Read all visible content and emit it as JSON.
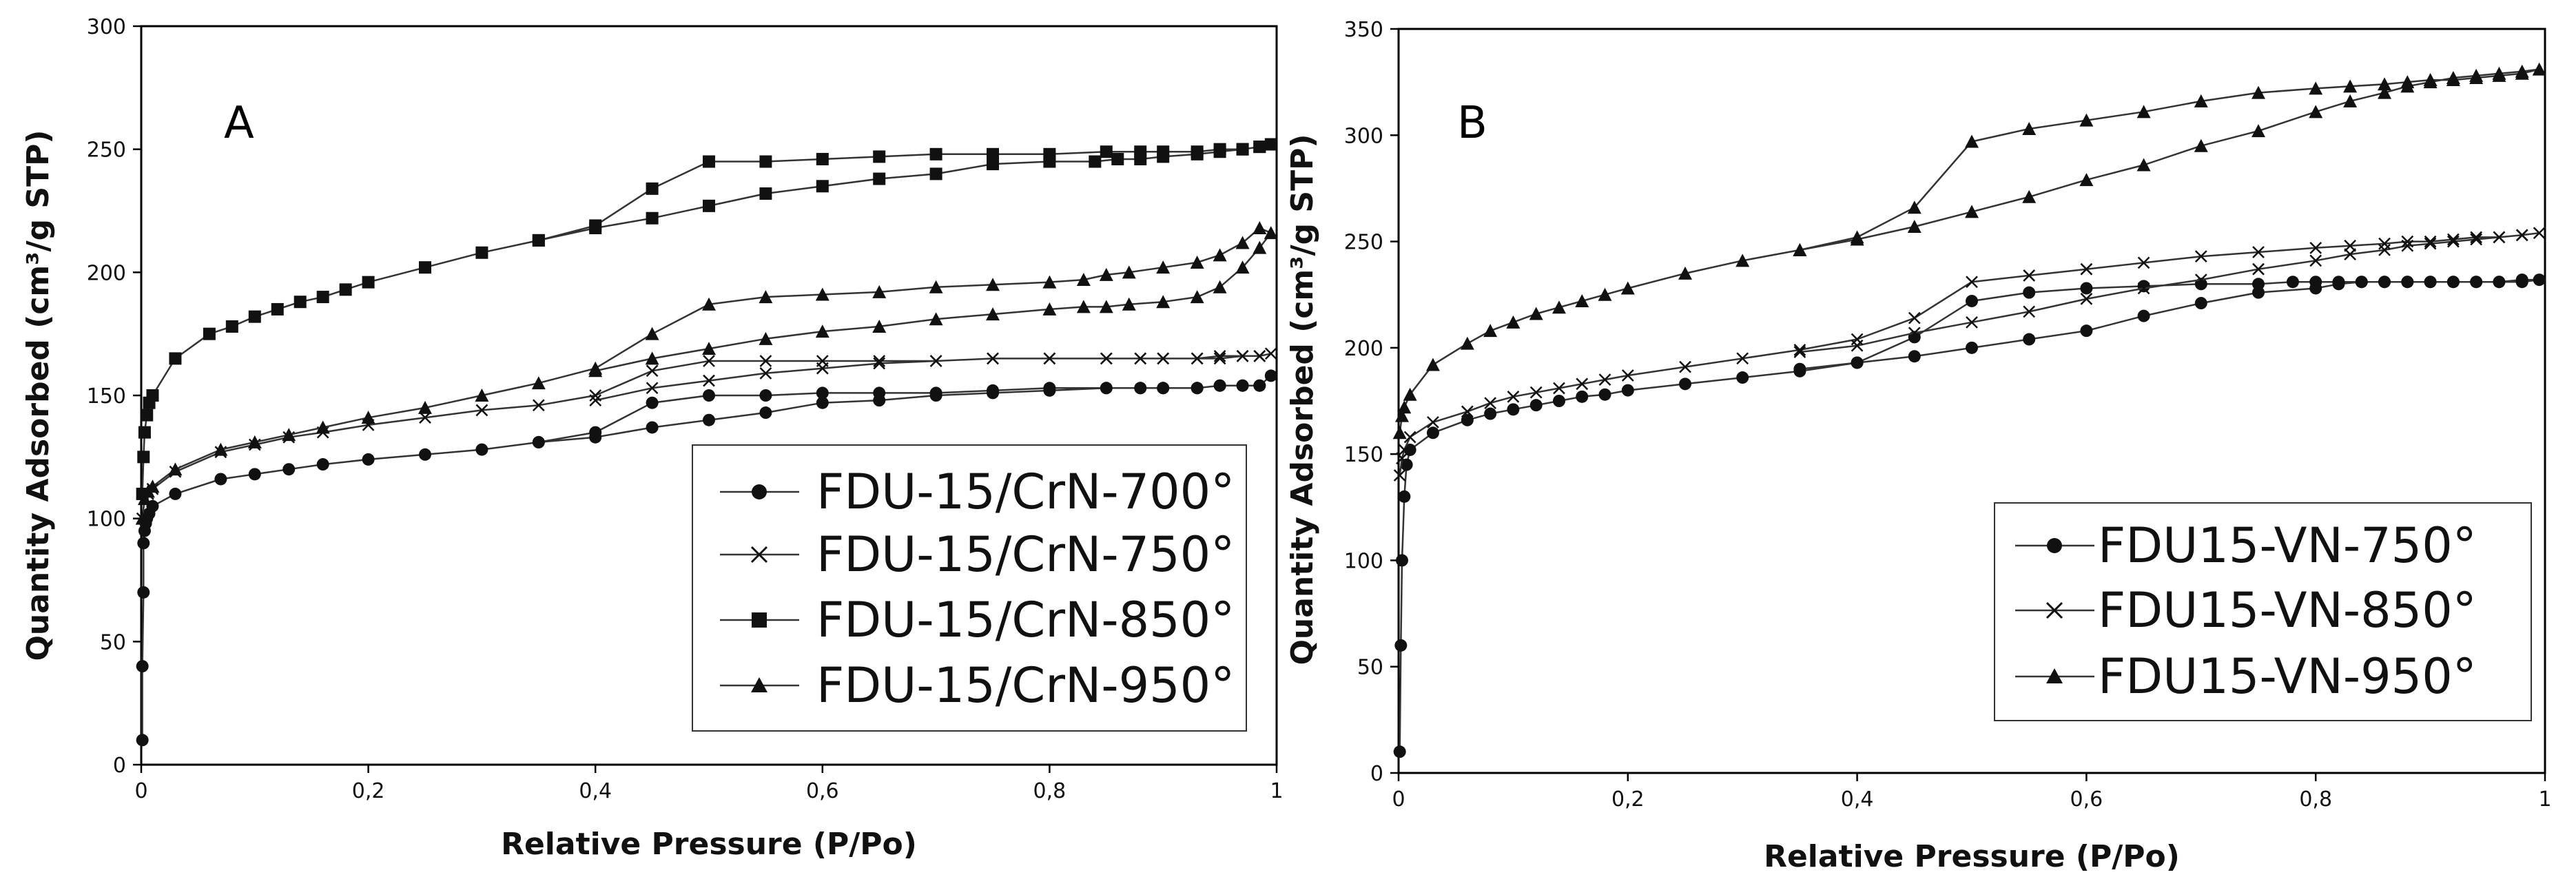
{
  "figure": {
    "panels": [
      "A",
      "B"
    ]
  },
  "chart_data": [
    {
      "type": "line",
      "panel_label": "A",
      "title": "",
      "xlabel": "Relative Pressure (P/Po)",
      "ylabel": "Quantity Adsorbed (cm³/g STP)",
      "xlim": [
        0,
        1
      ],
      "ylim": [
        0,
        300
      ],
      "xticks": [
        0,
        0.2,
        0.4,
        0.6,
        0.8,
        1
      ],
      "xtick_labels": [
        "0",
        "0,2",
        "0,4",
        "0,6",
        "0,8",
        "1"
      ],
      "yticks": [
        0,
        50,
        100,
        150,
        200,
        250,
        300
      ],
      "ytick_labels": [
        "0",
        "50",
        "100",
        "150",
        "200",
        "250",
        "300"
      ],
      "grid": false,
      "legend_position": "bottom-right",
      "series": [
        {
          "name": "FDU-15/CrN-700°",
          "marker": "circle",
          "x": [
            0.001,
            0.001,
            0.002,
            0.002,
            0.003,
            0.004,
            0.005,
            0.007,
            0.01,
            0.03,
            0.07,
            0.1,
            0.13,
            0.16,
            0.2,
            0.25,
            0.3,
            0.35,
            0.4,
            0.45,
            0.5,
            0.55,
            0.6,
            0.65,
            0.7,
            0.75,
            0.8,
            0.85,
            0.88,
            0.9,
            0.93,
            0.95,
            0.97,
            0.985,
            0.995,
            0.985,
            0.97,
            0.95,
            0.93,
            0.9,
            0.88,
            0.85,
            0.8,
            0.75,
            0.7,
            0.65,
            0.6,
            0.55,
            0.5,
            0.45,
            0.4,
            0.35
          ],
          "y": [
            10,
            40,
            70,
            90,
            95,
            98,
            100,
            102,
            105,
            110,
            116,
            118,
            120,
            122,
            124,
            126,
            128,
            131,
            135,
            147,
            150,
            150,
            151,
            151,
            151,
            152,
            153,
            153,
            153,
            153,
            153,
            154,
            154,
            154,
            158,
            154,
            154,
            154,
            153,
            153,
            153,
            153,
            152,
            151,
            150,
            148,
            147,
            143,
            140,
            137,
            133,
            131
          ]
        },
        {
          "name": "FDU-15/CrN-750°",
          "marker": "x",
          "x": [
            0.001,
            0.003,
            0.006,
            0.01,
            0.03,
            0.07,
            0.1,
            0.13,
            0.16,
            0.2,
            0.25,
            0.3,
            0.35,
            0.4,
            0.45,
            0.5,
            0.55,
            0.6,
            0.65,
            0.7,
            0.75,
            0.8,
            0.85,
            0.88,
            0.9,
            0.93,
            0.95,
            0.97,
            0.985,
            0.995,
            0.985,
            0.97,
            0.95,
            0.93,
            0.9,
            0.88,
            0.85,
            0.8,
            0.75,
            0.7,
            0.65,
            0.6,
            0.55,
            0.5,
            0.45,
            0.4
          ],
          "y": [
            100,
            108,
            110,
            112,
            119,
            127,
            130,
            133,
            135,
            138,
            141,
            144,
            146,
            150,
            160,
            164,
            164,
            164,
            164,
            164,
            165,
            165,
            165,
            165,
            165,
            165,
            166,
            166,
            166,
            167,
            166,
            166,
            165,
            165,
            165,
            165,
            165,
            165,
            165,
            164,
            163,
            161,
            159,
            156,
            153,
            148
          ]
        },
        {
          "name": "FDU-15/CrN-850°",
          "marker": "square",
          "x": [
            0.001,
            0.002,
            0.003,
            0.005,
            0.007,
            0.01,
            0.03,
            0.06,
            0.08,
            0.1,
            0.12,
            0.14,
            0.16,
            0.18,
            0.2,
            0.25,
            0.3,
            0.35,
            0.4,
            0.45,
            0.5,
            0.55,
            0.6,
            0.65,
            0.7,
            0.75,
            0.8,
            0.85,
            0.88,
            0.9,
            0.93,
            0.95,
            0.97,
            0.985,
            0.995,
            0.985,
            0.97,
            0.95,
            0.93,
            0.9,
            0.88,
            0.86,
            0.84,
            0.8,
            0.75,
            0.7,
            0.65,
            0.6,
            0.55,
            0.5,
            0.45,
            0.4,
            0.35
          ],
          "y": [
            110,
            125,
            135,
            142,
            147,
            150,
            165,
            175,
            178,
            182,
            185,
            188,
            190,
            193,
            196,
            202,
            208,
            213,
            219,
            234,
            245,
            245,
            246,
            247,
            248,
            248,
            248,
            249,
            249,
            249,
            249,
            250,
            250,
            251,
            252,
            251,
            250,
            249,
            248,
            247,
            246,
            246,
            245,
            245,
            244,
            240,
            238,
            235,
            232,
            227,
            222,
            218,
            213
          ]
        },
        {
          "name": "FDU-15/CrN-950°",
          "marker": "triangle",
          "x": [
            0.001,
            0.003,
            0.006,
            0.01,
            0.03,
            0.07,
            0.1,
            0.13,
            0.16,
            0.2,
            0.25,
            0.3,
            0.35,
            0.4,
            0.45,
            0.5,
            0.55,
            0.6,
            0.65,
            0.7,
            0.75,
            0.8,
            0.83,
            0.85,
            0.87,
            0.9,
            0.93,
            0.95,
            0.97,
            0.985,
            0.995,
            0.985,
            0.97,
            0.95,
            0.93,
            0.9,
            0.87,
            0.85,
            0.83,
            0.8,
            0.75,
            0.7,
            0.65,
            0.6,
            0.55,
            0.5,
            0.45,
            0.4
          ],
          "y": [
            100,
            108,
            111,
            113,
            120,
            128,
            131,
            134,
            137,
            141,
            145,
            150,
            155,
            161,
            175,
            187,
            190,
            191,
            192,
            194,
            195,
            196,
            197,
            199,
            200,
            202,
            204,
            207,
            212,
            218,
            216,
            210,
            202,
            194,
            190,
            188,
            187,
            186,
            186,
            185,
            183,
            181,
            178,
            176,
            173,
            169,
            165,
            160
          ]
        }
      ]
    },
    {
      "type": "line",
      "panel_label": "B",
      "title": "",
      "xlabel": "Relative Pressure (P/Po)",
      "ylabel": "Quantity Adsorbed (cm³/g STP)",
      "xlim": [
        0,
        1
      ],
      "ylim": [
        0,
        350
      ],
      "xticks": [
        0,
        0.2,
        0.4,
        0.6,
        0.8,
        1
      ],
      "xtick_labels": [
        "0",
        "0,2",
        "0,4",
        "0,6",
        "0,8",
        "1"
      ],
      "yticks": [
        0,
        50,
        100,
        150,
        200,
        250,
        300,
        350
      ],
      "ytick_labels": [
        "0",
        "50",
        "100",
        "150",
        "200",
        "250",
        "300",
        "350"
      ],
      "grid": false,
      "legend_position": "right",
      "series": [
        {
          "name": "FDU15-VN-750°",
          "marker": "circle",
          "x": [
            0.001,
            0.002,
            0.003,
            0.005,
            0.007,
            0.01,
            0.03,
            0.06,
            0.08,
            0.1,
            0.12,
            0.14,
            0.16,
            0.18,
            0.2,
            0.25,
            0.3,
            0.35,
            0.4,
            0.45,
            0.5,
            0.55,
            0.6,
            0.65,
            0.7,
            0.75,
            0.78,
            0.8,
            0.82,
            0.84,
            0.86,
            0.88,
            0.9,
            0.92,
            0.94,
            0.96,
            0.98,
            0.995,
            0.98,
            0.96,
            0.94,
            0.92,
            0.9,
            0.88,
            0.86,
            0.84,
            0.82,
            0.8,
            0.75,
            0.7,
            0.65,
            0.6,
            0.55,
            0.5,
            0.45,
            0.4,
            0.35
          ],
          "y": [
            10,
            60,
            100,
            130,
            145,
            152,
            160,
            166,
            169,
            171,
            173,
            175,
            177,
            178,
            180,
            183,
            186,
            189,
            193,
            205,
            222,
            226,
            228,
            229,
            230,
            230,
            231,
            231,
            231,
            231,
            231,
            231,
            231,
            231,
            231,
            231,
            232,
            232,
            231,
            231,
            231,
            231,
            231,
            231,
            231,
            231,
            230,
            228,
            226,
            221,
            215,
            208,
            204,
            200,
            196,
            193,
            190
          ]
        },
        {
          "name": "FDU15-VN-850°",
          "marker": "x",
          "x": [
            0.001,
            0.003,
            0.005,
            0.01,
            0.03,
            0.06,
            0.08,
            0.1,
            0.12,
            0.14,
            0.16,
            0.18,
            0.2,
            0.25,
            0.3,
            0.35,
            0.4,
            0.45,
            0.5,
            0.55,
            0.6,
            0.65,
            0.7,
            0.75,
            0.8,
            0.83,
            0.86,
            0.88,
            0.9,
            0.92,
            0.94,
            0.96,
            0.98,
            0.995,
            0.98,
            0.96,
            0.94,
            0.92,
            0.9,
            0.88,
            0.86,
            0.83,
            0.8,
            0.75,
            0.7,
            0.65,
            0.6,
            0.55,
            0.5,
            0.45,
            0.4,
            0.35
          ],
          "y": [
            140,
            148,
            152,
            158,
            165,
            170,
            174,
            177,
            179,
            181,
            183,
            185,
            187,
            191,
            195,
            199,
            204,
            214,
            231,
            234,
            237,
            240,
            243,
            245,
            247,
            248,
            249,
            250,
            250,
            251,
            252,
            252,
            253,
            254,
            253,
            252,
            251,
            250,
            249,
            248,
            246,
            244,
            241,
            237,
            232,
            228,
            223,
            217,
            212,
            207,
            201,
            198
          ]
        },
        {
          "name": "FDU15-VN-950°",
          "marker": "triangle",
          "x": [
            0.001,
            0.003,
            0.005,
            0.01,
            0.03,
            0.06,
            0.08,
            0.1,
            0.12,
            0.14,
            0.16,
            0.18,
            0.2,
            0.25,
            0.3,
            0.35,
            0.4,
            0.45,
            0.5,
            0.55,
            0.6,
            0.65,
            0.7,
            0.75,
            0.8,
            0.83,
            0.86,
            0.88,
            0.9,
            0.92,
            0.94,
            0.96,
            0.98,
            0.995,
            0.98,
            0.96,
            0.94,
            0.92,
            0.9,
            0.88,
            0.86,
            0.83,
            0.8,
            0.75,
            0.7,
            0.65,
            0.6,
            0.55,
            0.5,
            0.45,
            0.4,
            0.35
          ],
          "y": [
            160,
            168,
            172,
            178,
            192,
            202,
            208,
            212,
            216,
            219,
            222,
            225,
            228,
            235,
            241,
            246,
            252,
            266,
            297,
            303,
            307,
            311,
            316,
            320,
            322,
            323,
            324,
            325,
            326,
            326,
            327,
            328,
            329,
            331,
            330,
            329,
            328,
            327,
            325,
            323,
            320,
            316,
            311,
            302,
            295,
            286,
            279,
            271,
            264,
            257,
            251,
            246
          ]
        }
      ]
    }
  ]
}
